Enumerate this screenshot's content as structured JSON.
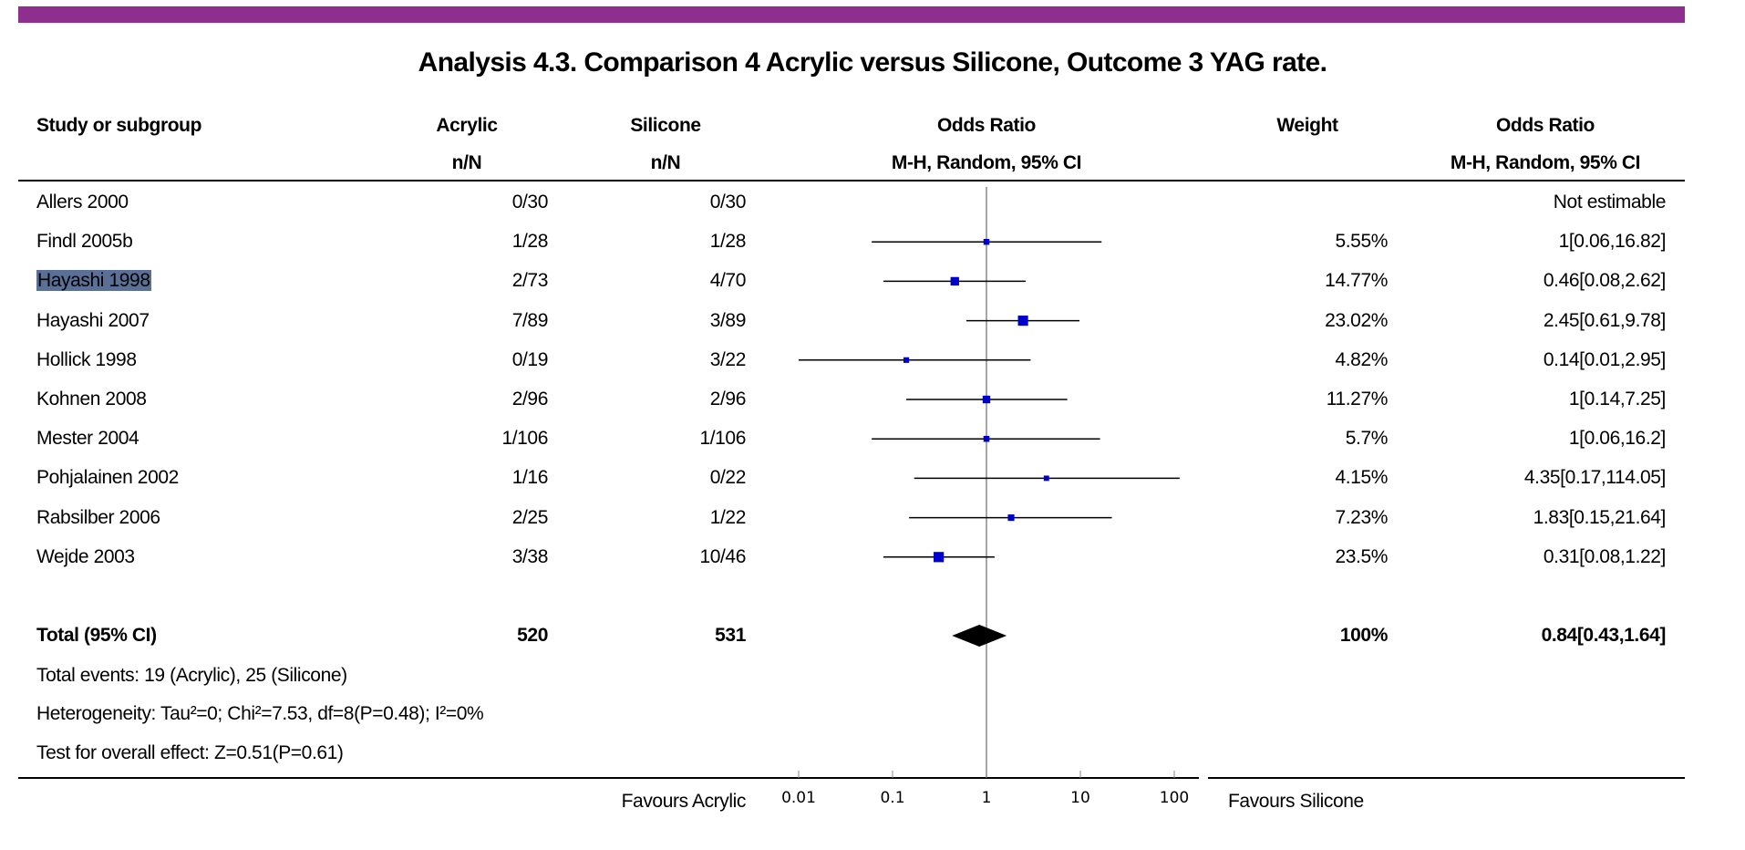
{
  "title": "Analysis 4.3.   Comparison 4 Acrylic versus Silicone, Outcome 3 YAG rate.",
  "colors": {
    "top_bar": "#8e2f8f",
    "square": "#0000cc",
    "highlight": "#5a7096"
  },
  "headers": {
    "study": "Study or subgroup",
    "acrylic": "Acrylic",
    "acrylic_sub": "n/N",
    "silicone": "Silicone",
    "silicone_sub": "n/N",
    "or_plot": "Odds Ratio",
    "or_plot_sub": "M-H, Random, 95% CI",
    "weight": "Weight",
    "or_text": "Odds Ratio",
    "or_text_sub": "M-H, Random, 95% CI"
  },
  "studies": [
    {
      "name": "Allers 2000",
      "acrylic": "0/30",
      "silicone": "0/30",
      "weight": "",
      "or_text": "Not estimable"
    },
    {
      "name": "Findl 2005b",
      "acrylic": "1/28",
      "silicone": "1/28",
      "weight": "5.55%",
      "or_text": "1[0.06,16.82]"
    },
    {
      "name": "Hayashi 1998",
      "acrylic": "2/73",
      "silicone": "4/70",
      "weight": "14.77%",
      "or_text": "0.46[0.08,2.62]",
      "selected": true
    },
    {
      "name": "Hayashi 2007",
      "acrylic": "7/89",
      "silicone": "3/89",
      "weight": "23.02%",
      "or_text": "2.45[0.61,9.78]"
    },
    {
      "name": "Hollick 1998",
      "acrylic": "0/19",
      "silicone": "3/22",
      "weight": "4.82%",
      "or_text": "0.14[0.01,2.95]"
    },
    {
      "name": "Kohnen 2008",
      "acrylic": "2/96",
      "silicone": "2/96",
      "weight": "11.27%",
      "or_text": "1[0.14,7.25]"
    },
    {
      "name": "Mester 2004",
      "acrylic": "1/106",
      "silicone": "1/106",
      "weight": "5.7%",
      "or_text": "1[0.06,16.2]"
    },
    {
      "name": "Pohjalainen 2002",
      "acrylic": "1/16",
      "silicone": "0/22",
      "weight": "4.15%",
      "or_text": "4.35[0.17,114.05]"
    },
    {
      "name": "Rabsilber 2006",
      "acrylic": "2/25",
      "silicone": "1/22",
      "weight": "7.23%",
      "or_text": "1.83[0.15,21.64]"
    },
    {
      "name": "Wejde 2003",
      "acrylic": "3/38",
      "silicone": "10/46",
      "weight": "23.5%",
      "or_text": "0.31[0.08,1.22]"
    }
  ],
  "total": {
    "label": "Total (95% CI)",
    "acrylic": "520",
    "silicone": "531",
    "weight": "100%",
    "or_text": "0.84[0.43,1.64]"
  },
  "notes": {
    "events": "Total events: 19 (Acrylic), 25 (Silicone)",
    "heterogeneity": "Heterogeneity: Tau²=0; Chi²=7.53, df=8(P=0.48); I²=0%",
    "overall": "Test for overall effect: Z=0.51(P=0.61)"
  },
  "footer": {
    "left": "Favours Acrylic",
    "right": "Favours Silicone"
  },
  "chart_data": {
    "type": "forest",
    "xscale": "log",
    "xlim": [
      0.005,
      200
    ],
    "xticks": [
      "0.01",
      "0.1",
      "1",
      "10",
      "100"
    ],
    "reference_line": 1,
    "points": [
      {
        "study": "Allers 2000",
        "or": null,
        "lo": null,
        "hi": null,
        "weight": 0
      },
      {
        "study": "Findl 2005b",
        "or": 1,
        "lo": 0.06,
        "hi": 16.82,
        "weight": 5.55
      },
      {
        "study": "Hayashi 1998",
        "or": 0.46,
        "lo": 0.08,
        "hi": 2.62,
        "weight": 14.77
      },
      {
        "study": "Hayashi 2007",
        "or": 2.45,
        "lo": 0.61,
        "hi": 9.78,
        "weight": 23.02
      },
      {
        "study": "Hollick 1998",
        "or": 0.14,
        "lo": 0.01,
        "hi": 2.95,
        "weight": 4.82
      },
      {
        "study": "Kohnen 2008",
        "or": 1,
        "lo": 0.14,
        "hi": 7.25,
        "weight": 11.27
      },
      {
        "study": "Mester 2004",
        "or": 1,
        "lo": 0.06,
        "hi": 16.2,
        "weight": 5.7
      },
      {
        "study": "Pohjalainen 2002",
        "or": 4.35,
        "lo": 0.17,
        "hi": 114.05,
        "weight": 4.15
      },
      {
        "study": "Rabsilber 2006",
        "or": 1.83,
        "lo": 0.15,
        "hi": 21.64,
        "weight": 7.23
      },
      {
        "study": "Wejde 2003",
        "or": 0.31,
        "lo": 0.08,
        "hi": 1.22,
        "weight": 23.5
      }
    ],
    "total": {
      "or": 0.84,
      "lo": 0.43,
      "hi": 1.64
    }
  }
}
